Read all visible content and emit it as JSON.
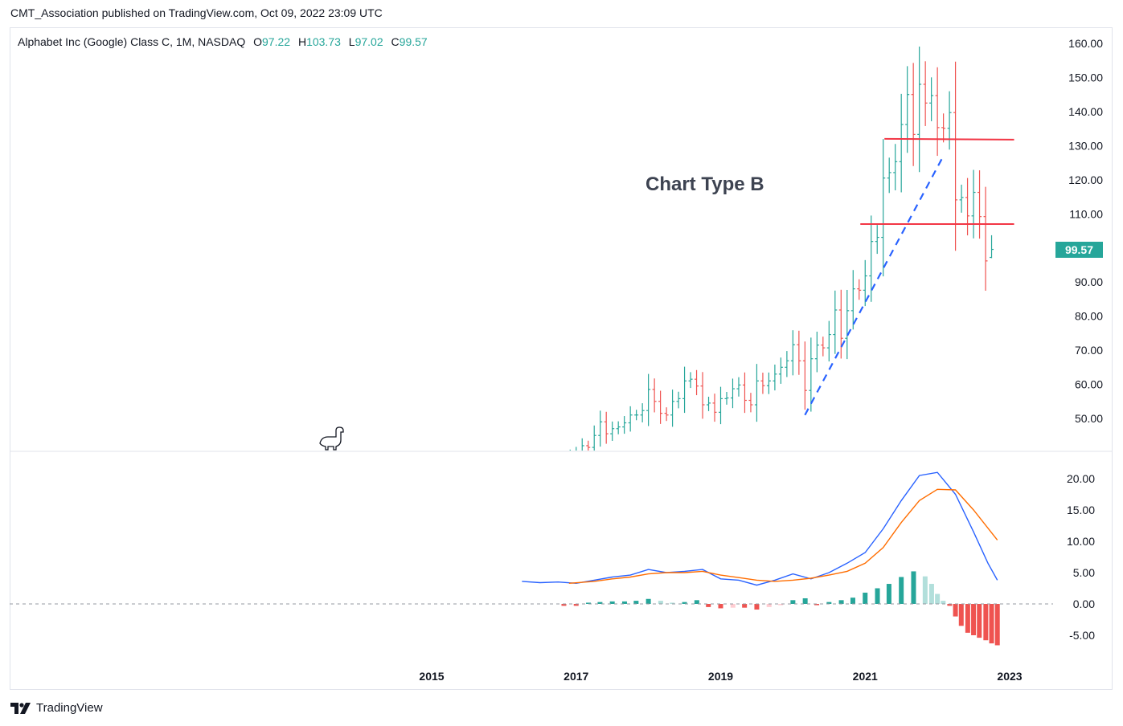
{
  "header": {
    "text": "CMT_Association published on TradingView.com, Oct 09, 2022 23:09 UTC"
  },
  "legend": {
    "symbol": "Alphabet Inc (Google) Class C, 1M, NASDAQ",
    "o_label": "O",
    "o": "97.22",
    "h_label": "H",
    "h": "103.73",
    "l_label": "L",
    "l": "97.02",
    "c_label": "C",
    "c": "99.57"
  },
  "annotation": "Chart Type B",
  "last_price_tag": "99.57",
  "footer": {
    "brand": "TradingView",
    "logo_icon": "tradingview-logo-icon"
  },
  "colors": {
    "up": "#26a69a",
    "down": "#ef5350",
    "trendline": "#2962ff",
    "hline": "#f23645",
    "macd": "#2962ff",
    "signal": "#ff6d00"
  },
  "chart_data": [
    {
      "type": "ohlc",
      "title": "Alphabet Inc (Google) Class C, 1M, NASDAQ",
      "interval": "1M",
      "x_tick_labels": [
        "2015",
        "2017",
        "2019",
        "2021",
        "2023"
      ],
      "y_tick_labels": [
        "50.00",
        "60.00",
        "70.00",
        "80.00",
        "90.00",
        "100.00",
        "110.00",
        "120.00",
        "130.00",
        "140.00",
        "150.00",
        "160.00"
      ],
      "ylim": [
        40,
        160
      ],
      "grid": false,
      "close_series": [
        [
          "2016-12",
          39.0
        ],
        [
          "2017-01",
          40.0
        ],
        [
          "2017-02",
          42.0
        ],
        [
          "2017-03",
          41.5
        ],
        [
          "2017-04",
          45.0
        ],
        [
          "2017-05",
          49.0
        ],
        [
          "2017-06",
          45.5
        ],
        [
          "2017-07",
          47.0
        ],
        [
          "2017-08",
          47.5
        ],
        [
          "2017-09",
          48.7
        ],
        [
          "2017-10",
          51.0
        ],
        [
          "2017-11",
          51.0
        ],
        [
          "2017-12",
          52.3
        ],
        [
          "2018-01",
          58.5
        ],
        [
          "2018-02",
          55.0
        ],
        [
          "2018-03",
          51.5
        ],
        [
          "2018-04",
          51.0
        ],
        [
          "2018-05",
          55.0
        ],
        [
          "2018-06",
          55.8
        ],
        [
          "2018-07",
          61.0
        ],
        [
          "2018-08",
          61.5
        ],
        [
          "2018-09",
          59.5
        ],
        [
          "2018-10",
          54.0
        ],
        [
          "2018-11",
          54.5
        ],
        [
          "2018-12",
          51.8
        ],
        [
          "2019-01",
          55.8
        ],
        [
          "2019-02",
          56.0
        ],
        [
          "2019-03",
          58.7
        ],
        [
          "2019-04",
          59.8
        ],
        [
          "2019-05",
          55.3
        ],
        [
          "2019-06",
          54.0
        ],
        [
          "2019-07",
          61.0
        ],
        [
          "2019-08",
          59.6
        ],
        [
          "2019-09",
          61.0
        ],
        [
          "2019-10",
          63.0
        ],
        [
          "2019-11",
          65.0
        ],
        [
          "2019-12",
          66.9
        ],
        [
          "2020-01",
          71.6
        ],
        [
          "2020-02",
          66.9
        ],
        [
          "2020-03",
          58.2
        ],
        [
          "2020-04",
          67.5
        ],
        [
          "2020-05",
          71.5
        ],
        [
          "2020-06",
          70.7
        ],
        [
          "2020-07",
          74.6
        ],
        [
          "2020-08",
          81.8
        ],
        [
          "2020-09",
          73.5
        ],
        [
          "2020-10",
          81.6
        ],
        [
          "2020-11",
          88.0
        ],
        [
          "2020-12",
          87.6
        ],
        [
          "2021-01",
          91.8
        ],
        [
          "2021-02",
          101.9
        ],
        [
          "2021-03",
          103.1
        ],
        [
          "2021-04",
          120.5
        ],
        [
          "2021-05",
          122.1
        ],
        [
          "2021-06",
          125.3
        ],
        [
          "2021-07",
          136.2
        ],
        [
          "2021-08",
          145.0
        ],
        [
          "2021-09",
          133.3
        ],
        [
          "2021-10",
          148.0
        ],
        [
          "2021-11",
          142.5
        ],
        [
          "2021-12",
          144.7
        ],
        [
          "2022-01",
          135.3
        ],
        [
          "2022-02",
          135.1
        ],
        [
          "2022-03",
          139.7
        ],
        [
          "2022-04",
          114.1
        ],
        [
          "2022-05",
          114.8
        ],
        [
          "2022-06",
          109.4
        ],
        [
          "2022-07",
          116.3
        ],
        [
          "2022-08",
          109.2
        ],
        [
          "2022-09",
          96.2
        ],
        [
          "2022-10",
          99.57
        ]
      ],
      "last_bar": {
        "open": 97.22,
        "high": 103.73,
        "low": 97.02,
        "close": 99.57
      },
      "annotations": {
        "support_trendline": {
          "from": [
            "2020-03",
            51.0
          ],
          "to": [
            "2022-02",
            127.0
          ],
          "style": "dashed"
        },
        "horizontal_lines": [
          {
            "from": "2021-05",
            "to": "2022-10",
            "y": 132.0
          },
          {
            "from": "2021-01",
            "to": "2022-10",
            "y": 107.0
          }
        ]
      }
    },
    {
      "type": "line+bar",
      "title": "",
      "y_tick_labels": [
        "-5.00",
        "0.00",
        "5.00",
        "10.00",
        "15.00",
        "20.00"
      ],
      "ylim": [
        -7,
        22
      ],
      "series": [
        {
          "name": "",
          "kind": "line",
          "color": "#2962ff",
          "values": [
            [
              2016.25,
              3.6
            ],
            [
              2016.5,
              3.4
            ],
            [
              2016.75,
              3.5
            ],
            [
              2017.0,
              3.3
            ],
            [
              2017.25,
              3.8
            ],
            [
              2017.5,
              4.3
            ],
            [
              2017.75,
              4.6
            ],
            [
              2018.0,
              5.5
            ],
            [
              2018.25,
              5.0
            ],
            [
              2018.5,
              5.2
            ],
            [
              2018.75,
              5.5
            ],
            [
              2019.0,
              4.0
            ],
            [
              2019.25,
              3.8
            ],
            [
              2019.5,
              3.0
            ],
            [
              2019.75,
              3.8
            ],
            [
              2020.0,
              4.8
            ],
            [
              2020.25,
              4.0
            ],
            [
              2020.5,
              5.0
            ],
            [
              2020.75,
              6.5
            ],
            [
              2021.0,
              8.2
            ],
            [
              2021.25,
              12.0
            ],
            [
              2021.5,
              16.5
            ],
            [
              2021.75,
              20.5
            ],
            [
              2022.0,
              21.0
            ],
            [
              2022.25,
              17.5
            ],
            [
              2022.5,
              11.5
            ],
            [
              2022.7,
              6.5
            ],
            [
              2022.83,
              3.8
            ]
          ]
        },
        {
          "name": "",
          "kind": "line",
          "color": "#ff6d00",
          "values": [
            [
              2016.9,
              3.3
            ],
            [
              2017.25,
              3.6
            ],
            [
              2017.5,
              4.0
            ],
            [
              2017.75,
              4.3
            ],
            [
              2018.0,
              4.8
            ],
            [
              2018.25,
              5.0
            ],
            [
              2018.5,
              5.0
            ],
            [
              2018.75,
              5.2
            ],
            [
              2019.0,
              4.6
            ],
            [
              2019.25,
              4.2
            ],
            [
              2019.5,
              3.8
            ],
            [
              2019.75,
              3.6
            ],
            [
              2020.0,
              3.8
            ],
            [
              2020.25,
              4.1
            ],
            [
              2020.5,
              4.6
            ],
            [
              2020.75,
              5.2
            ],
            [
              2021.0,
              6.5
            ],
            [
              2021.25,
              9.0
            ],
            [
              2021.5,
              13.0
            ],
            [
              2021.75,
              16.5
            ],
            [
              2022.0,
              18.3
            ],
            [
              2022.25,
              18.2
            ],
            [
              2022.5,
              15.0
            ],
            [
              2022.83,
              10.2
            ]
          ]
        },
        {
          "name": "",
          "kind": "histogram",
          "values": [
            [
              2016.83,
              -0.3
            ],
            [
              2017.0,
              -0.3
            ],
            [
              2017.17,
              0.2
            ],
            [
              2017.33,
              0.3
            ],
            [
              2017.5,
              0.4
            ],
            [
              2017.67,
              0.4
            ],
            [
              2017.83,
              0.5
            ],
            [
              2018.0,
              0.8
            ],
            [
              2018.17,
              0.5
            ],
            [
              2018.33,
              0.2
            ],
            [
              2018.5,
              0.3
            ],
            [
              2018.67,
              0.6
            ],
            [
              2018.83,
              -0.5
            ],
            [
              2019.0,
              -0.7
            ],
            [
              2019.17,
              -0.6
            ],
            [
              2019.33,
              -0.6
            ],
            [
              2019.5,
              -0.9
            ],
            [
              2019.67,
              -0.5
            ],
            [
              2019.83,
              -0.2
            ],
            [
              2020.0,
              0.6
            ],
            [
              2020.17,
              0.9
            ],
            [
              2020.33,
              -0.2
            ],
            [
              2020.5,
              0.3
            ],
            [
              2020.67,
              0.6
            ],
            [
              2020.83,
              1.0
            ],
            [
              2021.0,
              1.8
            ],
            [
              2021.17,
              2.5
            ],
            [
              2021.33,
              3.2
            ],
            [
              2021.5,
              4.3
            ],
            [
              2021.67,
              5.2
            ],
            [
              2021.83,
              4.4
            ],
            [
              2021.92,
              3.2
            ],
            [
              2022.0,
              1.6
            ],
            [
              2022.08,
              0.5
            ],
            [
              2022.17,
              -0.3
            ],
            [
              2022.25,
              -2.0
            ],
            [
              2022.33,
              -3.5
            ],
            [
              2022.42,
              -4.6
            ],
            [
              2022.5,
              -5.0
            ],
            [
              2022.58,
              -5.4
            ],
            [
              2022.67,
              -5.8
            ],
            [
              2022.75,
              -6.3
            ],
            [
              2022.83,
              -6.6
            ]
          ]
        }
      ],
      "zero_line": {
        "y": 0,
        "style": "dashed"
      }
    }
  ]
}
